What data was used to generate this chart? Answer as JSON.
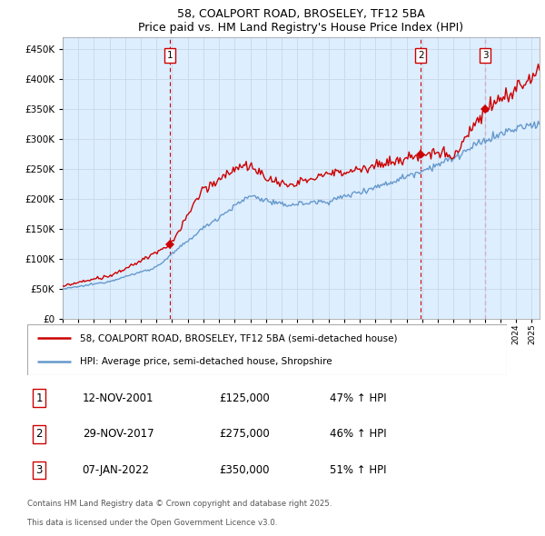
{
  "title1": "58, COALPORT ROAD, BROSELEY, TF12 5BA",
  "title2": "Price paid vs. HM Land Registry's House Price Index (HPI)",
  "legend_line1": "58, COALPORT ROAD, BROSELEY, TF12 5BA (semi-detached house)",
  "legend_line2": "HPI: Average price, semi-detached house, Shropshire",
  "footer1": "Contains HM Land Registry data © Crown copyright and database right 2025.",
  "footer2": "This data is licensed under the Open Government Licence v3.0.",
  "sale_color": "#cc0000",
  "hpi_color": "#6699cc",
  "vline_color": "#cc0000",
  "grid_color": "#c8d8e8",
  "bg_color": "#ddeeff",
  "sales": [
    {
      "label": "1",
      "date": 2001.87,
      "price": 125000
    },
    {
      "label": "2",
      "date": 2017.91,
      "price": 275000
    },
    {
      "label": "3",
      "date": 2022.02,
      "price": 350000
    }
  ],
  "sale_table": [
    {
      "num": "1",
      "date": "12-NOV-2001",
      "price": "£125,000",
      "change": "47% ↑ HPI"
    },
    {
      "num": "2",
      "date": "29-NOV-2017",
      "price": "£275,000",
      "change": "46% ↑ HPI"
    },
    {
      "num": "3",
      "date": "07-JAN-2022",
      "price": "£350,000",
      "change": "51% ↑ HPI"
    }
  ],
  "ylim": [
    0,
    470000
  ],
  "xlim_start": 1995.0,
  "xlim_end": 2025.5
}
